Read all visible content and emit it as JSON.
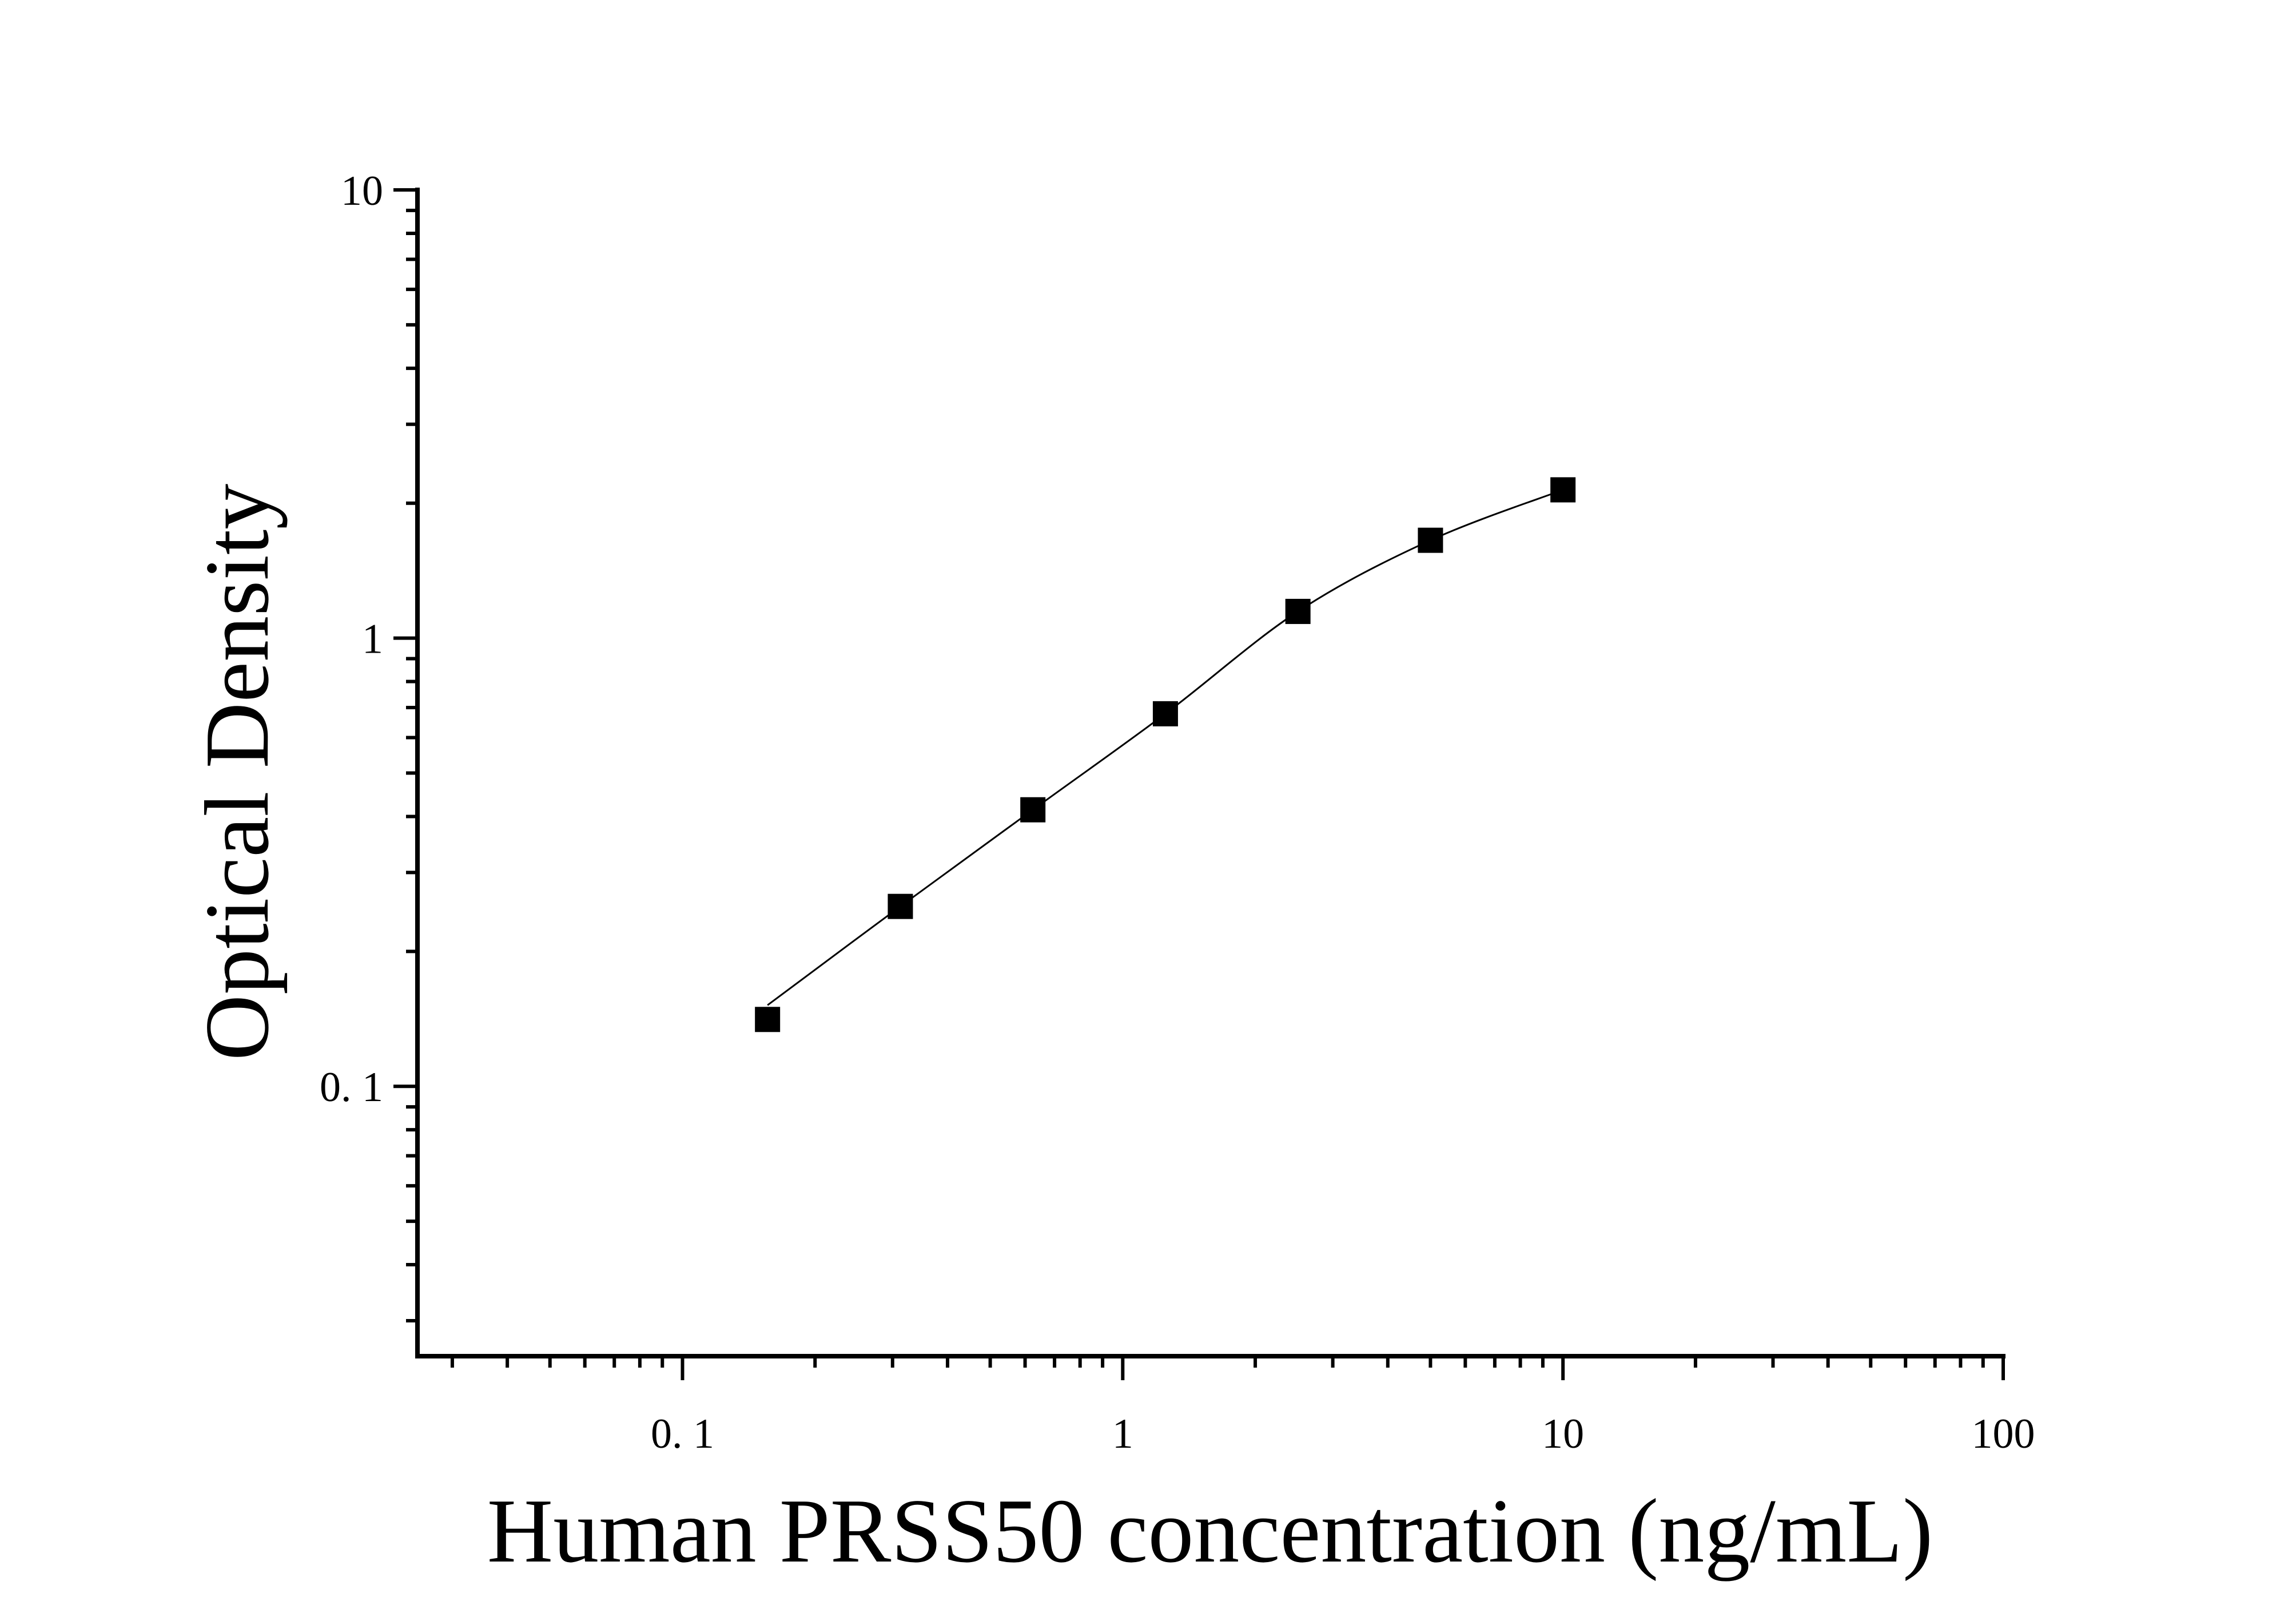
{
  "chart_data": {
    "type": "scatter",
    "title": "",
    "xlabel": "Human PRSS50 concentration (ng/mL)",
    "ylabel": "Optical Density",
    "xscale": "log",
    "yscale": "log",
    "xlim": [
      0.025,
      100
    ],
    "ylim": [
      0.025,
      10
    ],
    "grid": false,
    "x_ticks": [
      0.1,
      1,
      10,
      100
    ],
    "x_tick_labels": [
      "0. 1",
      "1",
      "10",
      "100"
    ],
    "y_ticks": [
      0.1,
      1,
      10
    ],
    "y_tick_labels": [
      "0. 1",
      "1",
      "10"
    ],
    "series": [
      {
        "marker": "square",
        "color": "#000000",
        "fit_line": true,
        "x": [
          0.156,
          0.3125,
          0.625,
          1.25,
          2.5,
          5,
          10
        ],
        "y": [
          0.141,
          0.252,
          0.414,
          0.678,
          1.147,
          1.653,
          2.142
        ]
      }
    ]
  }
}
